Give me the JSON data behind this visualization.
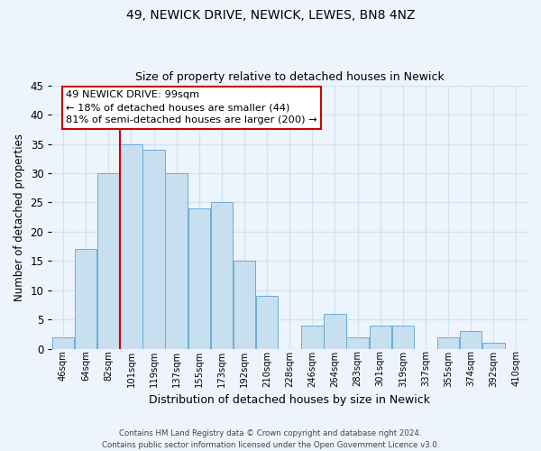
{
  "title": "49, NEWICK DRIVE, NEWICK, LEWES, BN8 4NZ",
  "subtitle": "Size of property relative to detached houses in Newick",
  "xlabel": "Distribution of detached houses by size in Newick",
  "ylabel": "Number of detached properties",
  "bar_labels": [
    "46sqm",
    "64sqm",
    "82sqm",
    "101sqm",
    "119sqm",
    "137sqm",
    "155sqm",
    "173sqm",
    "192sqm",
    "210sqm",
    "228sqm",
    "246sqm",
    "264sqm",
    "283sqm",
    "301sqm",
    "319sqm",
    "337sqm",
    "355sqm",
    "374sqm",
    "392sqm",
    "410sqm"
  ],
  "bar_values": [
    2,
    17,
    30,
    35,
    34,
    30,
    24,
    25,
    15,
    9,
    0,
    4,
    6,
    2,
    4,
    4,
    0,
    2,
    3,
    1,
    0
  ],
  "bar_color": "#c8dff0",
  "bar_edge_color": "#6aaed6",
  "ylim": [
    0,
    45
  ],
  "yticks": [
    0,
    5,
    10,
    15,
    20,
    25,
    30,
    35,
    40,
    45
  ],
  "vline_x": 2.5,
  "vline_color": "#cc0000",
  "annotation_title": "49 NEWICK DRIVE: 99sqm",
  "annotation_line1": "← 18% of detached houses are smaller (44)",
  "annotation_line2": "81% of semi-detached houses are larger (200) →",
  "footer_line1": "Contains HM Land Registry data © Crown copyright and database right 2024.",
  "footer_line2": "Contains public sector information licensed under the Open Government Licence v3.0.",
  "background_color": "#eef4fb",
  "grid_color": "#d0e4f5"
}
